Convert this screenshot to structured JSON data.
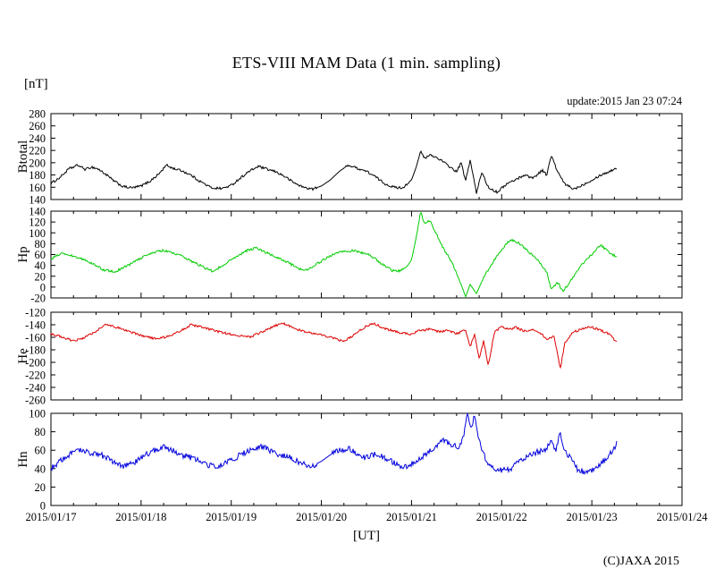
{
  "title": "ETS-VIII MAM Data (1 min. sampling)",
  "y_unit_label": "[nT]",
  "update_text": "update:2015 Jan 23 07:24",
  "x_label": "[UT]",
  "copyright": "(C)JAXA 2015",
  "x_axis": {
    "tick_labels": [
      "2015/01/17",
      "2015/01/18",
      "2015/01/19",
      "2015/01/20",
      "2015/01/21",
      "2015/01/22",
      "2015/01/23",
      "2015/01/24"
    ],
    "range_days": [
      0,
      7
    ],
    "minor_tick_days": 0.25
  },
  "chart_data": [
    {
      "type": "line",
      "name": "Btotal",
      "color": "#000000",
      "ylim": [
        140,
        280
      ],
      "ytick_step": 20,
      "noise": 2.0,
      "smooth_ranges": [
        [
          2.95,
          3.25
        ],
        [
          3.97,
          4.09
        ]
      ],
      "x": [
        0,
        0.1,
        0.2,
        0.3,
        0.38,
        0.45,
        0.52,
        0.6,
        0.7,
        0.8,
        0.9,
        1.0,
        1.1,
        1.2,
        1.28,
        1.35,
        1.45,
        1.55,
        1.65,
        1.78,
        1.9,
        2.0,
        2.1,
        2.2,
        2.3,
        2.4,
        2.5,
        2.6,
        2.7,
        2.8,
        2.9,
        3.0,
        3.1,
        3.2,
        3.3,
        3.4,
        3.5,
        3.6,
        3.7,
        3.8,
        3.9,
        4.0,
        4.05,
        4.1,
        4.15,
        4.2,
        4.3,
        4.4,
        4.5,
        4.55,
        4.6,
        4.65,
        4.72,
        4.78,
        4.85,
        4.95,
        5.05,
        5.15,
        5.25,
        5.35,
        5.45,
        5.5,
        5.55,
        5.62,
        5.7,
        5.8,
        5.9,
        6.0,
        6.1,
        6.2,
        6.28
      ],
      "values": [
        166,
        176,
        190,
        196,
        189,
        193,
        190,
        182,
        170,
        161,
        159,
        162,
        170,
        182,
        196,
        191,
        187,
        180,
        170,
        159,
        158,
        163,
        175,
        186,
        194,
        189,
        185,
        177,
        167,
        160,
        157,
        162,
        172,
        186,
        196,
        191,
        186,
        177,
        166,
        160,
        159,
        172,
        192,
        218,
        206,
        213,
        207,
        196,
        185,
        200,
        170,
        205,
        150,
        185,
        160,
        152,
        165,
        172,
        180,
        175,
        188,
        180,
        212,
        185,
        165,
        157,
        164,
        172,
        180,
        186,
        192
      ]
    },
    {
      "type": "line",
      "name": "Hp",
      "color": "#00cc00",
      "ylim": [
        -20,
        140
      ],
      "ytick_step": 20,
      "noise": 2.2,
      "smooth_ranges": [
        [
          3.93,
          4.06
        ],
        [
          4.55,
          4.78
        ]
      ],
      "x": [
        0,
        0.12,
        0.22,
        0.32,
        0.45,
        0.58,
        0.7,
        0.78,
        0.9,
        1.0,
        1.12,
        1.25,
        1.32,
        1.45,
        1.58,
        1.7,
        1.8,
        1.92,
        2.05,
        2.18,
        2.28,
        2.38,
        2.5,
        2.62,
        2.75,
        2.85,
        3.0,
        3.12,
        3.22,
        3.35,
        3.45,
        3.55,
        3.65,
        3.78,
        3.88,
        3.95,
        4.0,
        4.05,
        4.1,
        4.15,
        4.2,
        4.27,
        4.35,
        4.45,
        4.55,
        4.6,
        4.65,
        4.72,
        4.8,
        4.9,
        5.0,
        5.1,
        5.2,
        5.3,
        5.4,
        5.5,
        5.55,
        5.62,
        5.68,
        5.78,
        5.88,
        6.0,
        6.1,
        6.18,
        6.28
      ],
      "values": [
        52,
        62,
        58,
        54,
        44,
        32,
        28,
        34,
        44,
        54,
        63,
        68,
        64,
        58,
        46,
        36,
        29,
        42,
        56,
        68,
        72,
        64,
        55,
        46,
        34,
        32,
        48,
        60,
        65,
        67,
        63,
        58,
        45,
        31,
        30,
        38,
        50,
        90,
        138,
        115,
        124,
        100,
        72,
        45,
        5,
        -18,
        5,
        -12,
        18,
        45,
        70,
        88,
        80,
        64,
        50,
        28,
        -5,
        8,
        -8,
        15,
        40,
        60,
        78,
        65,
        55
      ]
    },
    {
      "type": "line",
      "name": "He",
      "color": "#dd0000",
      "ylim": [
        -260,
        -120
      ],
      "ytick_step": 20,
      "noise": 1.8,
      "smooth_ranges": [],
      "x": [
        0,
        0.1,
        0.25,
        0.35,
        0.5,
        0.6,
        0.7,
        0.85,
        1.0,
        1.15,
        1.3,
        1.45,
        1.55,
        1.65,
        1.8,
        1.95,
        2.1,
        2.2,
        2.35,
        2.5,
        2.58,
        2.7,
        2.85,
        3.0,
        3.15,
        3.25,
        3.35,
        3.5,
        3.58,
        3.7,
        3.85,
        4.0,
        4.1,
        4.2,
        4.3,
        4.4,
        4.5,
        4.6,
        4.65,
        4.7,
        4.75,
        4.8,
        4.85,
        4.92,
        5.0,
        5.08,
        5.15,
        5.25,
        5.35,
        5.45,
        5.5,
        5.58,
        5.65,
        5.7,
        5.78,
        5.88,
        5.98,
        6.08,
        6.18,
        6.28
      ],
      "values": [
        -155,
        -158,
        -166,
        -162,
        -150,
        -140,
        -143,
        -150,
        -157,
        -162,
        -159,
        -149,
        -140,
        -143,
        -149,
        -154,
        -158,
        -160,
        -151,
        -141,
        -138,
        -146,
        -152,
        -156,
        -162,
        -167,
        -157,
        -142,
        -138,
        -146,
        -152,
        -155,
        -149,
        -147,
        -151,
        -149,
        -154,
        -149,
        -175,
        -155,
        -195,
        -165,
        -205,
        -152,
        -142,
        -148,
        -144,
        -150,
        -147,
        -155,
        -164,
        -158,
        -210,
        -170,
        -153,
        -147,
        -143,
        -148,
        -154,
        -168
      ]
    },
    {
      "type": "line",
      "name": "Hn",
      "color": "#0000dd",
      "ylim": [
        0,
        100
      ],
      "ytick_step": 20,
      "noise": 3.2,
      "smooth_ranges": [
        [
          2.95,
          3.12
        ]
      ],
      "x": [
        0,
        0.1,
        0.25,
        0.35,
        0.45,
        0.55,
        0.65,
        0.8,
        0.9,
        1.0,
        1.15,
        1.25,
        1.35,
        1.45,
        1.55,
        1.65,
        1.8,
        1.95,
        2.1,
        2.25,
        2.35,
        2.45,
        2.55,
        2.65,
        2.8,
        2.9,
        3.0,
        3.1,
        3.2,
        3.3,
        3.4,
        3.5,
        3.6,
        3.7,
        3.85,
        3.95,
        4.05,
        4.15,
        4.25,
        4.35,
        4.45,
        4.52,
        4.58,
        4.62,
        4.66,
        4.7,
        4.75,
        4.82,
        4.9,
        5.0,
        5.1,
        5.2,
        5.3,
        5.4,
        5.5,
        5.55,
        5.6,
        5.65,
        5.7,
        5.78,
        5.85,
        5.95,
        6.05,
        6.15,
        6.2,
        6.28
      ],
      "values": [
        40,
        48,
        58,
        60,
        57,
        55,
        50,
        43,
        45,
        52,
        60,
        64,
        60,
        55,
        52,
        48,
        42,
        46,
        55,
        62,
        64,
        58,
        55,
        52,
        45,
        43,
        48,
        55,
        60,
        62,
        55,
        52,
        56,
        52,
        44,
        42,
        48,
        55,
        62,
        70,
        66,
        62,
        75,
        100,
        85,
        98,
        70,
        50,
        40,
        38,
        40,
        48,
        55,
        58,
        62,
        72,
        60,
        78,
        58,
        50,
        38,
        36,
        42,
        50,
        55,
        68
      ]
    }
  ]
}
